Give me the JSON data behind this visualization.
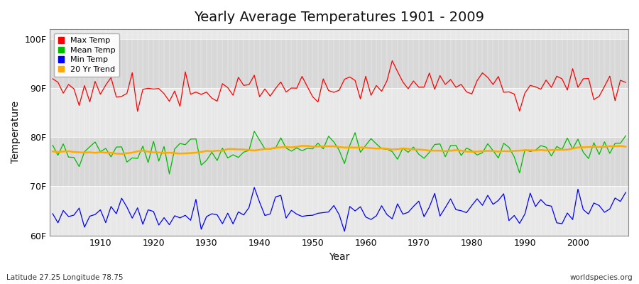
{
  "title": "Yearly Average Temperatures 1901 - 2009",
  "xlabel": "Year",
  "ylabel": "Temperature",
  "lat_label": "Latitude 27.25 Longitude 78.75",
  "website_label": "worldspecies.org",
  "ylim": [
    60,
    102
  ],
  "yticks": [
    60,
    70,
    80,
    90,
    100
  ],
  "ytick_labels": [
    "60F",
    "70F",
    "80F",
    "90F",
    "100F"
  ],
  "year_start": 1901,
  "year_end": 2009,
  "fig_bg_color": "#ffffff",
  "plot_bg_color": "#e8e8e8",
  "band_color_dark": "#d8d8d8",
  "band_color_light": "#e8e8e8",
  "grid_color": "#ffffff",
  "max_temp_color": "#ff0000",
  "mean_temp_color": "#00bb00",
  "min_temp_color": "#0000ff",
  "trend_color": "#ffaa00",
  "legend_labels": [
    "Max Temp",
    "Mean Temp",
    "Min Temp",
    "20 Yr Trend"
  ],
  "title_fontsize": 14,
  "axis_fontsize": 9,
  "label_fontsize": 8,
  "max_base": 90.0,
  "mean_base": 77.0,
  "min_base": 64.5,
  "max_noise": 1.8,
  "mean_noise": 1.3,
  "min_noise": 1.4
}
